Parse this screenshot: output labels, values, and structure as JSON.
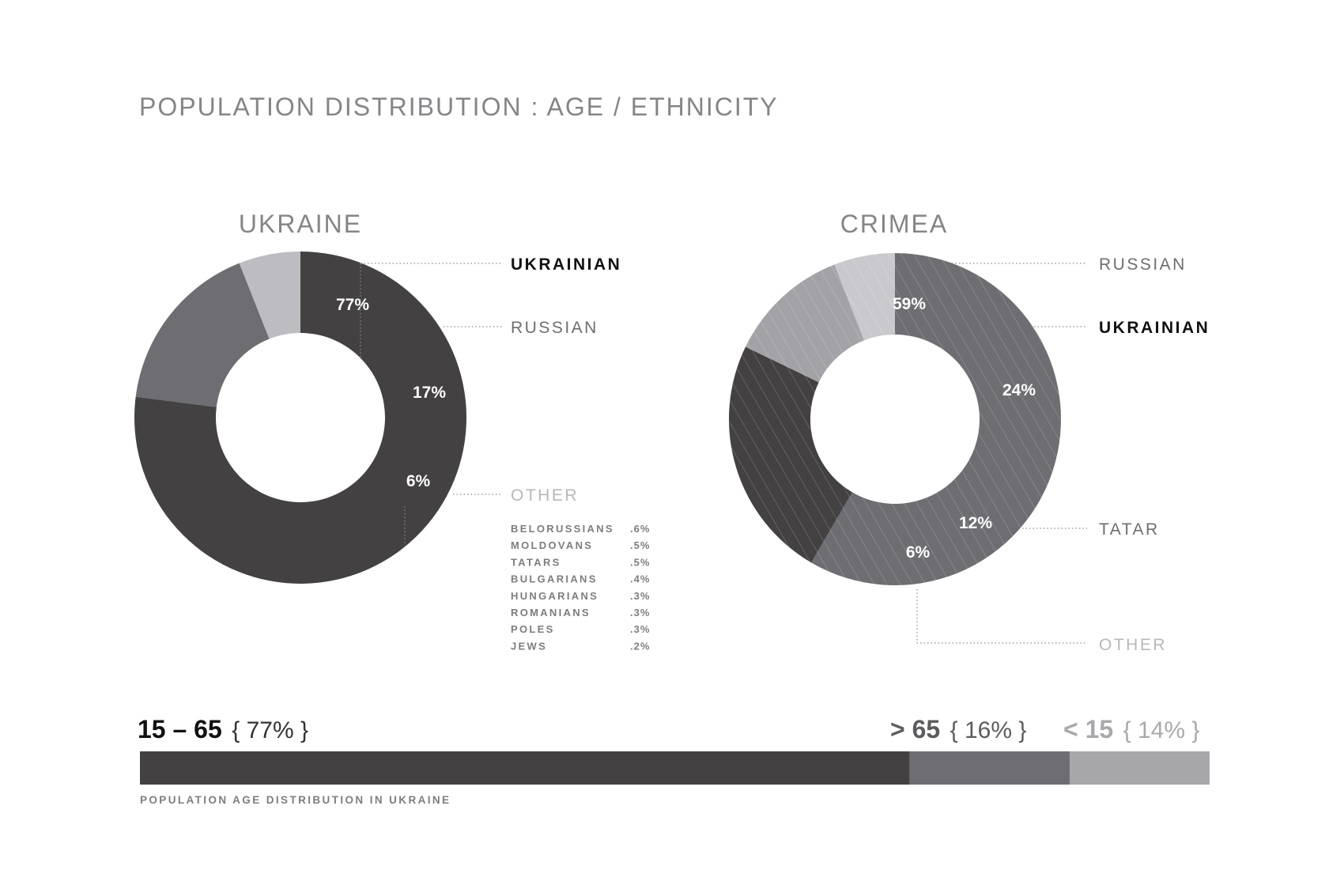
{
  "title": "POPULATION DISTRIBUTION : AGE / ETHNICITY",
  "colors": {
    "dark": "#444142",
    "mid": "#6e6d72",
    "light": "#bdbcc0",
    "text_dark": "#111111",
    "text_mid": "#6e6e70",
    "text_light": "#b8b8ba",
    "bar_dark": "#444142",
    "bar_mid": "#6e6d72",
    "bar_light": "#a7a7aa"
  },
  "chart_data": [
    {
      "type": "pie",
      "style": "donut",
      "title": "UKRAINE",
      "slices": [
        {
          "label": "UKRAINIAN",
          "value": 77,
          "display": "77%",
          "color": "#444142",
          "hatched": false,
          "legend_tone": "dark"
        },
        {
          "label": "RUSSIAN",
          "value": 17,
          "display": "17%",
          "color": "#6e6d72",
          "hatched": false,
          "legend_tone": "mid"
        },
        {
          "label": "OTHER",
          "value": 6,
          "display": "6%",
          "color": "#bdbcc0",
          "hatched": false,
          "legend_tone": "light"
        }
      ],
      "other_breakdown": [
        {
          "name": "BELORUSSIANS",
          "value": ".6%"
        },
        {
          "name": "MOLDOVANS",
          "value": ".5%"
        },
        {
          "name": "TATARS",
          "value": ".5%"
        },
        {
          "name": "BULGARIANS",
          "value": ".4%"
        },
        {
          "name": "HUNGARIANS",
          "value": ".3%"
        },
        {
          "name": "ROMANIANS",
          "value": ".3%"
        },
        {
          "name": "POLES",
          "value": ".3%"
        },
        {
          "name": "JEWS",
          "value": ".2%"
        }
      ]
    },
    {
      "type": "pie",
      "style": "donut",
      "title": "CRIMEA",
      "slices": [
        {
          "label": "RUSSIAN",
          "value": 59,
          "display": "59%",
          "color": "#6e6d72",
          "hatched": true,
          "legend_tone": "mid"
        },
        {
          "label": "UKRAINIAN",
          "value": 24,
          "display": "24%",
          "color": "#444142",
          "hatched": true,
          "legend_tone": "dark"
        },
        {
          "label": "TATAR",
          "value": 12,
          "display": "12%",
          "color": "#a3a2a6",
          "hatched": true,
          "legend_tone": "mid"
        },
        {
          "label": "OTHER",
          "value": 6,
          "display": "6%",
          "color": "#c9c8cc",
          "hatched": true,
          "legend_tone": "light"
        }
      ]
    },
    {
      "type": "bar",
      "style": "stacked-horizontal",
      "caption": "POPULATION AGE DISTRIBUTION IN UKRAINE",
      "segments": [
        {
          "range": "15 – 65",
          "value": 77,
          "display": "{ 77% }",
          "color": "#444142",
          "tone": "dark"
        },
        {
          "range": "> 65",
          "value": 16,
          "display": "{ 16% }",
          "color": "#6e6d72",
          "tone": "mid"
        },
        {
          "range": "< 15",
          "value": 14,
          "display": "{ 14% }",
          "color": "#a7a7aa",
          "tone": "light"
        }
      ]
    }
  ]
}
